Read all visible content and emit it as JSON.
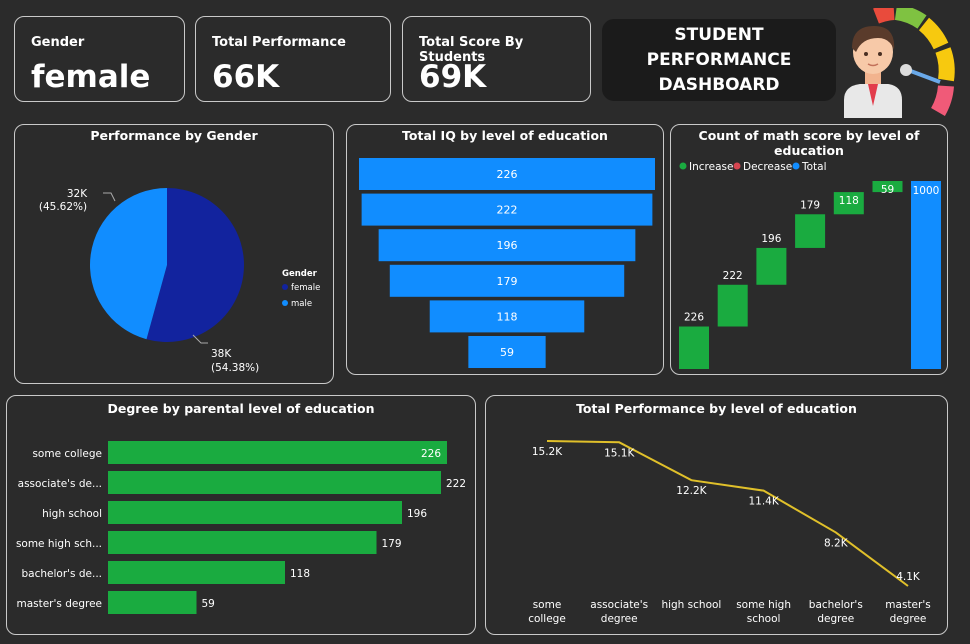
{
  "kpis": [
    {
      "label": "Gender",
      "value": "female"
    },
    {
      "label": "Total Performance",
      "value": "66K"
    },
    {
      "label": "Total Score By Students",
      "value": "69K"
    }
  ],
  "dashboard_title": {
    "line1": "STUDENT PERFORMANCE",
    "line2": "DASHBOARD"
  },
  "colors": {
    "background": "#2b2b2b",
    "female": "#12239e",
    "male": "#118dff",
    "funnel_blue": "#118dff",
    "increase": "#1aab40",
    "decrease": "#d64550",
    "total": "#118dff",
    "bar_green": "#1aab40",
    "line_yellow": "#e0c02a"
  },
  "icons": {
    "avatar": "student-teacher-avatar-icon",
    "gauge": "performance-gauge-icon"
  },
  "chart_data": [
    {
      "id": "gender_pie",
      "type": "pie",
      "title": "Performance by Gender",
      "legend_title": "Gender",
      "legend_position": "right",
      "slices": [
        {
          "name": "female",
          "value": 38,
          "label": "38K",
          "percent_label": "(54.38%)"
        },
        {
          "name": "male",
          "value": 32,
          "label": "32K",
          "percent_label": "(45.62%)"
        }
      ]
    },
    {
      "id": "iq_funnel",
      "type": "bar",
      "title": "Total IQ by level of education",
      "values": [
        226,
        222,
        196,
        179,
        118,
        59
      ]
    },
    {
      "id": "math_waterfall",
      "type": "bar",
      "title": "Count of math score by level of education",
      "legend": [
        "Increase",
        "Decrease",
        "Total"
      ],
      "legend_position": "top-left",
      "values": [
        226,
        222,
        196,
        179,
        118,
        59
      ],
      "total": 1000,
      "ylim": [
        0,
        1000
      ]
    },
    {
      "id": "degree_bars",
      "type": "bar",
      "title": "Degree by parental level of education",
      "categories": [
        "some college",
        "associate's de...",
        "high school",
        "some high sch...",
        "bachelor's de...",
        "master's degree"
      ],
      "values": [
        226,
        222,
        196,
        179,
        118,
        59
      ],
      "xlim": [
        0,
        226
      ]
    },
    {
      "id": "performance_line",
      "type": "line",
      "title": "Total Performance by level of education",
      "categories": [
        [
          "some",
          "college"
        ],
        [
          "associate's",
          "degree"
        ],
        [
          "high school"
        ],
        [
          "some high",
          "school"
        ],
        [
          "bachelor's",
          "degree"
        ],
        [
          "master's",
          "degree"
        ]
      ],
      "values": [
        15.2,
        15.1,
        12.2,
        11.4,
        8.2,
        4.1
      ],
      "labels": [
        "15.2K",
        "15.1K",
        "12.2K",
        "11.4K",
        "8.2K",
        "4.1K"
      ],
      "ylim": [
        4.1,
        15.2
      ]
    }
  ]
}
